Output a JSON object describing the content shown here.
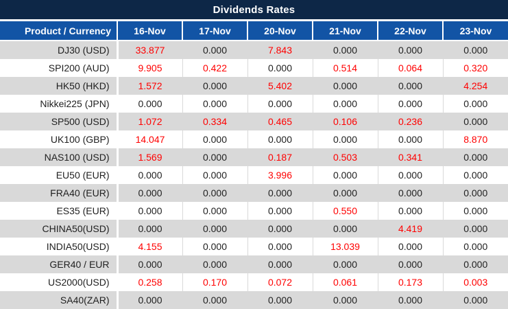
{
  "title": "Dividends Rates",
  "table": {
    "header": [
      "Product / Currency",
      "16-Nov",
      "17-Nov",
      "20-Nov",
      "21-Nov",
      "22-Nov",
      "23-Nov"
    ],
    "rows": [
      {
        "label": "DJ30 (USD)",
        "values": [
          "33.877",
          "0.000",
          "7.843",
          "0.000",
          "0.000",
          "0.000"
        ]
      },
      {
        "label": "SPI200 (AUD)",
        "values": [
          "9.905",
          "0.422",
          "0.000",
          "0.514",
          "0.064",
          "0.320"
        ]
      },
      {
        "label": "HK50 (HKD)",
        "values": [
          "1.572",
          "0.000",
          "5.402",
          "0.000",
          "0.000",
          "4.254"
        ]
      },
      {
        "label": "Nikkei225 (JPN)",
        "values": [
          "0.000",
          "0.000",
          "0.000",
          "0.000",
          "0.000",
          "0.000"
        ]
      },
      {
        "label": "SP500 (USD)",
        "values": [
          "1.072",
          "0.334",
          "0.465",
          "0.106",
          "0.236",
          "0.000"
        ]
      },
      {
        "label": "UK100 (GBP)",
        "values": [
          "14.047",
          "0.000",
          "0.000",
          "0.000",
          "0.000",
          "8.870"
        ]
      },
      {
        "label": "NAS100 (USD)",
        "values": [
          "1.569",
          "0.000",
          "0.187",
          "0.503",
          "0.341",
          "0.000"
        ]
      },
      {
        "label": "EU50 (EUR)",
        "values": [
          "0.000",
          "0.000",
          "3.996",
          "0.000",
          "0.000",
          "0.000"
        ]
      },
      {
        "label": "FRA40 (EUR)",
        "values": [
          "0.000",
          "0.000",
          "0.000",
          "0.000",
          "0.000",
          "0.000"
        ]
      },
      {
        "label": "ES35 (EUR)",
        "values": [
          "0.000",
          "0.000",
          "0.000",
          "0.550",
          "0.000",
          "0.000"
        ]
      },
      {
        "label": "CHINA50(USD)",
        "values": [
          "0.000",
          "0.000",
          "0.000",
          "0.000",
          "4.419",
          "0.000"
        ]
      },
      {
        "label": "INDIA50(USD)",
        "values": [
          "4.155",
          "0.000",
          "0.000",
          "13.039",
          "0.000",
          "0.000"
        ]
      },
      {
        "label": "GER40 / EUR",
        "values": [
          "0.000",
          "0.000",
          "0.000",
          "0.000",
          "0.000",
          "0.000"
        ]
      },
      {
        "label": "US2000(USD)",
        "values": [
          "0.258",
          "0.170",
          "0.072",
          "0.061",
          "0.173",
          "0.003"
        ]
      },
      {
        "label": "SA40(ZAR)",
        "values": [
          "0.000",
          "0.000",
          "0.000",
          "0.000",
          "0.000",
          "0.000"
        ]
      }
    ],
    "zero_value": "0.000"
  },
  "colors": {
    "title_bar_bg": "#0d2747",
    "header_bg": "#1254a5",
    "header_text": "#ffffff",
    "stripe_gray": "#d9d9d9",
    "stripe_white": "#ffffff",
    "value_nonzero": "#ff0000",
    "value_zero": "#1f1f1f"
  }
}
